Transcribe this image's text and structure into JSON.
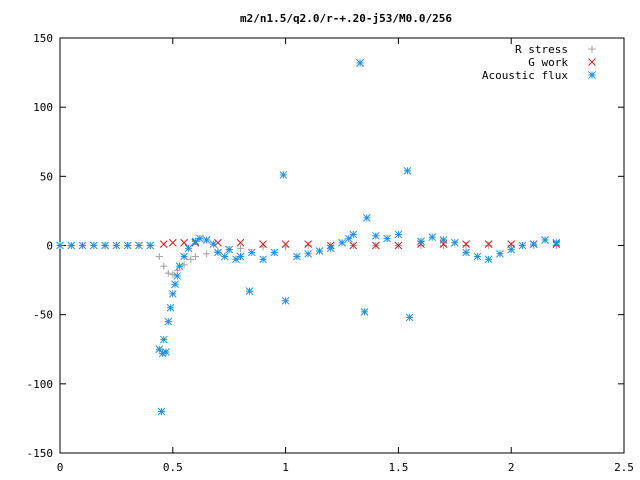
{
  "chart_data": {
    "type": "scatter",
    "title": "m2/n1.5/q2.0/r-+.20-j53/M0.0/256",
    "xlabel": "",
    "ylabel": "",
    "xlim": [
      0,
      2.5
    ],
    "ylim": [
      -150,
      150
    ],
    "x_ticks": [
      0,
      0.5,
      1,
      1.5,
      2,
      2.5
    ],
    "x_tick_labels": [
      "0",
      "0.5",
      "1",
      "1.5",
      "2",
      "2.5"
    ],
    "y_ticks": [
      -150,
      -100,
      -50,
      0,
      50,
      100,
      150
    ],
    "y_tick_labels": [
      "-150",
      "-100",
      "-50",
      "0",
      "50",
      "100",
      "150"
    ],
    "grid": false,
    "legend_position": "top-right",
    "series": [
      {
        "name": "R stress",
        "marker": "plus",
        "color": "#a0a0a0",
        "x": [
          0.0,
          0.1,
          0.2,
          0.3,
          0.4,
          0.44,
          0.46,
          0.48,
          0.5,
          0.52,
          0.55,
          0.58,
          0.6,
          0.65,
          0.7,
          0.75,
          0.8,
          0.9,
          1.0,
          1.1,
          1.2,
          1.3,
          1.4,
          1.5,
          1.6,
          1.7,
          1.8,
          1.9,
          2.0,
          2.1,
          2.2
        ],
        "y": [
          0,
          0,
          0,
          0,
          0,
          -8,
          -15,
          -20,
          -21,
          -18,
          -14,
          -10,
          -8,
          -6,
          -4,
          -3,
          -2,
          -1,
          -1,
          0,
          0,
          0,
          0,
          0,
          0,
          0,
          0,
          0,
          0,
          0,
          0
        ]
      },
      {
        "name": "G work",
        "marker": "cross",
        "color": "#d02020",
        "x": [
          0.46,
          0.5,
          0.55,
          0.6,
          0.7,
          0.8,
          0.9,
          1.0,
          1.1,
          1.2,
          1.3,
          1.4,
          1.5,
          1.6,
          1.7,
          1.8,
          1.9,
          2.0,
          2.1,
          2.2
        ],
        "y": [
          1,
          2,
          2,
          2,
          2,
          2,
          1,
          1,
          1,
          0,
          0,
          0,
          0,
          1,
          1,
          1,
          1,
          1,
          1,
          1
        ]
      },
      {
        "name": "Acoustic flux",
        "marker": "star",
        "color": "#1e90e0",
        "x": [
          0.0,
          0.05,
          0.1,
          0.15,
          0.2,
          0.25,
          0.3,
          0.35,
          0.4,
          0.44,
          0.45,
          0.455,
          0.46,
          0.47,
          0.48,
          0.49,
          0.5,
          0.51,
          0.52,
          0.53,
          0.55,
          0.57,
          0.6,
          0.62,
          0.65,
          0.68,
          0.7,
          0.73,
          0.75,
          0.78,
          0.8,
          0.84,
          0.85,
          0.9,
          0.95,
          0.99,
          1.0,
          1.05,
          1.1,
          1.15,
          1.2,
          1.25,
          1.28,
          1.3,
          1.33,
          1.35,
          1.36,
          1.4,
          1.45,
          1.5,
          1.54,
          1.55,
          1.6,
          1.65,
          1.7,
          1.75,
          1.8,
          1.85,
          1.9,
          1.95,
          2.0,
          2.05,
          2.1,
          2.15,
          2.2
        ],
        "y": [
          0,
          0,
          0,
          0,
          0,
          0,
          0,
          0,
          0,
          -75,
          -120,
          -78,
          -68,
          -77,
          -55,
          -45,
          -35,
          -28,
          -22,
          -15,
          -8,
          -2,
          3,
          5,
          4,
          1,
          -5,
          -8,
          -3,
          -10,
          -8,
          -33,
          -5,
          -10,
          -5,
          51,
          -40,
          -8,
          -6,
          -4,
          -2,
          2,
          5,
          8,
          132,
          -48,
          20,
          7,
          5,
          8,
          54,
          -52,
          3,
          6,
          4,
          2,
          -5,
          -8,
          -10,
          -6,
          -3,
          0,
          1,
          4,
          2
        ]
      }
    ]
  }
}
